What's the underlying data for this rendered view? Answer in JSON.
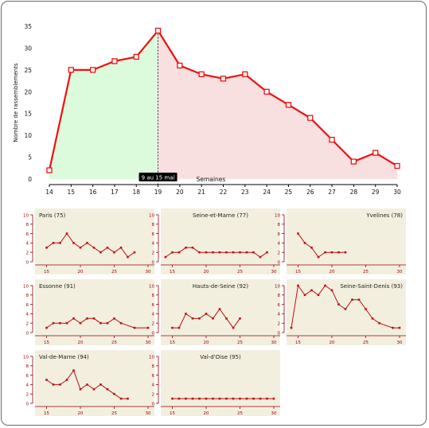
{
  "main_chart": {
    "type": "line",
    "ylabel": "Nombre de rassemblements",
    "xlabel": "Semaines",
    "x": [
      14,
      15,
      16,
      17,
      18,
      19,
      20,
      21,
      22,
      23,
      24,
      25,
      26,
      27,
      28,
      29,
      30
    ],
    "values": [
      2,
      25,
      25,
      27,
      28,
      34,
      26,
      24,
      23,
      24,
      20,
      17,
      14,
      9,
      4,
      6,
      3
    ],
    "xlim": [
      14,
      30
    ],
    "ylim": [
      0,
      35
    ],
    "yticks": [
      0,
      5,
      10,
      15,
      20,
      25,
      30,
      35
    ],
    "marker_x": 19,
    "marker_label": "9 au 15 mai",
    "line_color": "#ee1111",
    "fill_before": "#dcfadc",
    "fill_after": "#f8e0e0"
  },
  "chart_data": [
    {
      "type": "line",
      "title": "Paris (75)",
      "x": [
        15,
        16,
        17,
        18,
        19,
        20,
        21,
        22,
        23,
        24,
        25,
        26,
        27,
        28,
        29
      ],
      "values": [
        3,
        4,
        4,
        6,
        4,
        3,
        4,
        3,
        2,
        3,
        2,
        3,
        1,
        2,
        null
      ],
      "xlim": [
        14,
        30
      ],
      "ylim": [
        0,
        10
      ],
      "title_align": "left"
    },
    {
      "type": "line",
      "title": "Seine-et-Marne (77)",
      "x": [
        14,
        15,
        16,
        17,
        18,
        19,
        20,
        21,
        22,
        23,
        24,
        25,
        26,
        27,
        28,
        29
      ],
      "values": [
        1,
        2,
        2,
        3,
        3,
        2,
        2,
        2,
        2,
        2,
        2,
        2,
        2,
        2,
        1,
        2
      ],
      "xlim": [
        14,
        30
      ],
      "ylim": [
        0,
        10
      ],
      "title_align": "center"
    },
    {
      "type": "line",
      "title": "Yvelines (78)",
      "x": [
        15,
        16,
        17,
        18,
        19,
        20,
        21,
        22
      ],
      "values": [
        6,
        4,
        3,
        1,
        2,
        2,
        2,
        2
      ],
      "xlim": [
        14,
        30
      ],
      "ylim": [
        0,
        10
      ],
      "title_align": "right"
    },
    {
      "type": "line",
      "title": "Essonne (91)",
      "x": [
        15,
        16,
        17,
        18,
        19,
        20,
        21,
        22,
        23,
        24,
        25,
        26,
        28,
        30
      ],
      "values": [
        1,
        2,
        2,
        2,
        3,
        2,
        3,
        3,
        2,
        2,
        3,
        2,
        1,
        1
      ],
      "xlim": [
        14,
        30
      ],
      "ylim": [
        0,
        10
      ],
      "title_align": "left"
    },
    {
      "type": "line",
      "title": "Hauts-de-Seine (92)",
      "x": [
        15,
        16,
        17,
        18,
        19,
        20,
        21,
        22,
        23,
        24,
        25,
        26
      ],
      "values": [
        1,
        1,
        4,
        3,
        3,
        4,
        3,
        5,
        3,
        1,
        3,
        null
      ],
      "xlim": [
        14,
        30
      ],
      "ylim": [
        0,
        10
      ],
      "title_align": "center"
    },
    {
      "type": "line",
      "title": "Seine-Saint-Denis (93)",
      "x": [
        14,
        15,
        16,
        17,
        18,
        19,
        20,
        21,
        22,
        23,
        24,
        25,
        26,
        27,
        29,
        30
      ],
      "values": [
        1,
        10,
        8,
        9,
        8,
        10,
        9,
        6,
        5,
        7,
        7,
        5,
        3,
        2,
        1,
        1
      ],
      "xlim": [
        14,
        30
      ],
      "ylim": [
        0,
        10
      ],
      "title_align": "right"
    },
    {
      "type": "line",
      "title": "Val-de-Marne (94)",
      "x": [
        15,
        16,
        17,
        18,
        19,
        20,
        21,
        22,
        23,
        24,
        25,
        26,
        27
      ],
      "values": [
        5,
        4,
        4,
        5,
        7,
        3,
        4,
        3,
        4,
        3,
        2,
        1,
        1
      ],
      "xlim": [
        14,
        30
      ],
      "ylim": [
        0,
        10
      ],
      "title_align": "left"
    },
    {
      "type": "line",
      "title": "Val-d'Oise (95)",
      "x": [
        15,
        16,
        17,
        18,
        19,
        20,
        21,
        22,
        23,
        24,
        25,
        26,
        27,
        28,
        29,
        30
      ],
      "values": [
        1,
        1,
        1,
        1,
        1,
        1,
        1,
        1,
        1,
        1,
        1,
        1,
        1,
        1,
        1,
        1
      ],
      "xlim": [
        14,
        30
      ],
      "ylim": [
        0,
        10
      ],
      "title_align": "center"
    }
  ],
  "small_chart_style": {
    "panel_bg": "#f3efdf",
    "axis_color": "#990000",
    "line_color": "#bb1111",
    "yticks": [
      0,
      2,
      4,
      6,
      8,
      10
    ],
    "xticks": [
      15,
      20,
      25,
      30
    ]
  }
}
